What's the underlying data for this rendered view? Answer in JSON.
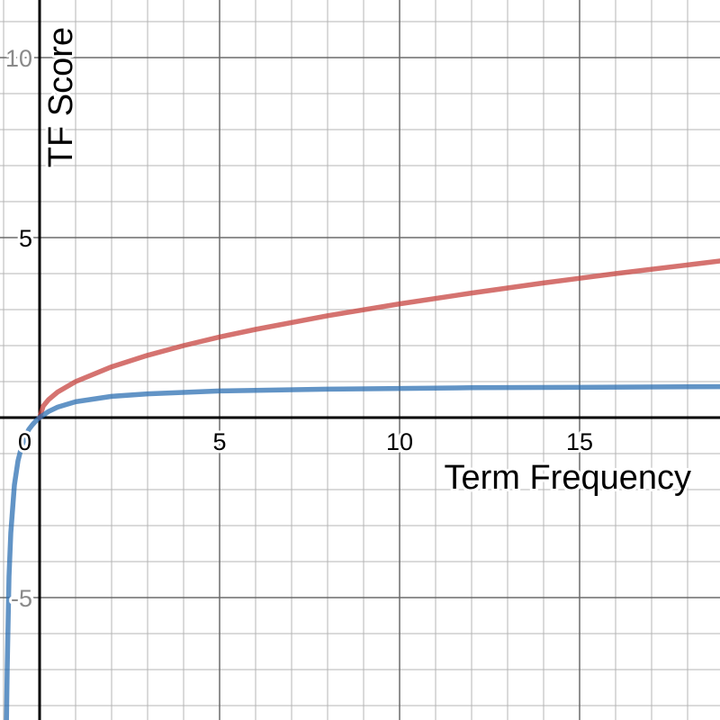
{
  "chart_data": {
    "type": "line",
    "xlabel": "Term Frequency",
    "ylabel": "TF Score",
    "xlim": [
      -1.1,
      18.9
    ],
    "ylim": [
      -8.4,
      11.6
    ],
    "grid": true,
    "x_ticks": [
      {
        "value": 0,
        "label": "0"
      },
      {
        "value": 5,
        "label": "5"
      },
      {
        "value": 10,
        "label": "10"
      },
      {
        "value": 15,
        "label": "15"
      }
    ],
    "y_ticks": [
      {
        "value": 10,
        "label": "10"
      },
      {
        "value": 5,
        "label": "5"
      },
      {
        "value": -5,
        "label": "-5"
      }
    ],
    "series": [
      {
        "color": "#c74440",
        "x": [
          0,
          0.1,
          0.25,
          0.5,
          1,
          2,
          3,
          4,
          5,
          6,
          8,
          10,
          12,
          14,
          16,
          18,
          18.9
        ],
        "y": [
          0,
          0.32,
          0.5,
          0.71,
          1.0,
          1.41,
          1.73,
          2.0,
          2.24,
          2.45,
          2.83,
          3.16,
          3.46,
          3.74,
          4.0,
          4.24,
          4.35
        ]
      },
      {
        "color": "#2d70b3",
        "x": [
          -0.92,
          -0.9,
          -0.85,
          -0.8,
          -0.7,
          -0.6,
          -0.5,
          -0.4,
          -0.3,
          -0.2,
          -0.1,
          0,
          0.25,
          0.5,
          1,
          2,
          3,
          5,
          8,
          12,
          15,
          18.9
        ],
        "y": [
          -8.4,
          -6.99,
          -4.42,
          -3.2,
          -1.87,
          -1.2,
          -0.8,
          -0.53,
          -0.33,
          -0.2,
          -0.09,
          0,
          0.17,
          0.29,
          0.44,
          0.59,
          0.66,
          0.74,
          0.79,
          0.83,
          0.84,
          0.86
        ]
      }
    ]
  }
}
